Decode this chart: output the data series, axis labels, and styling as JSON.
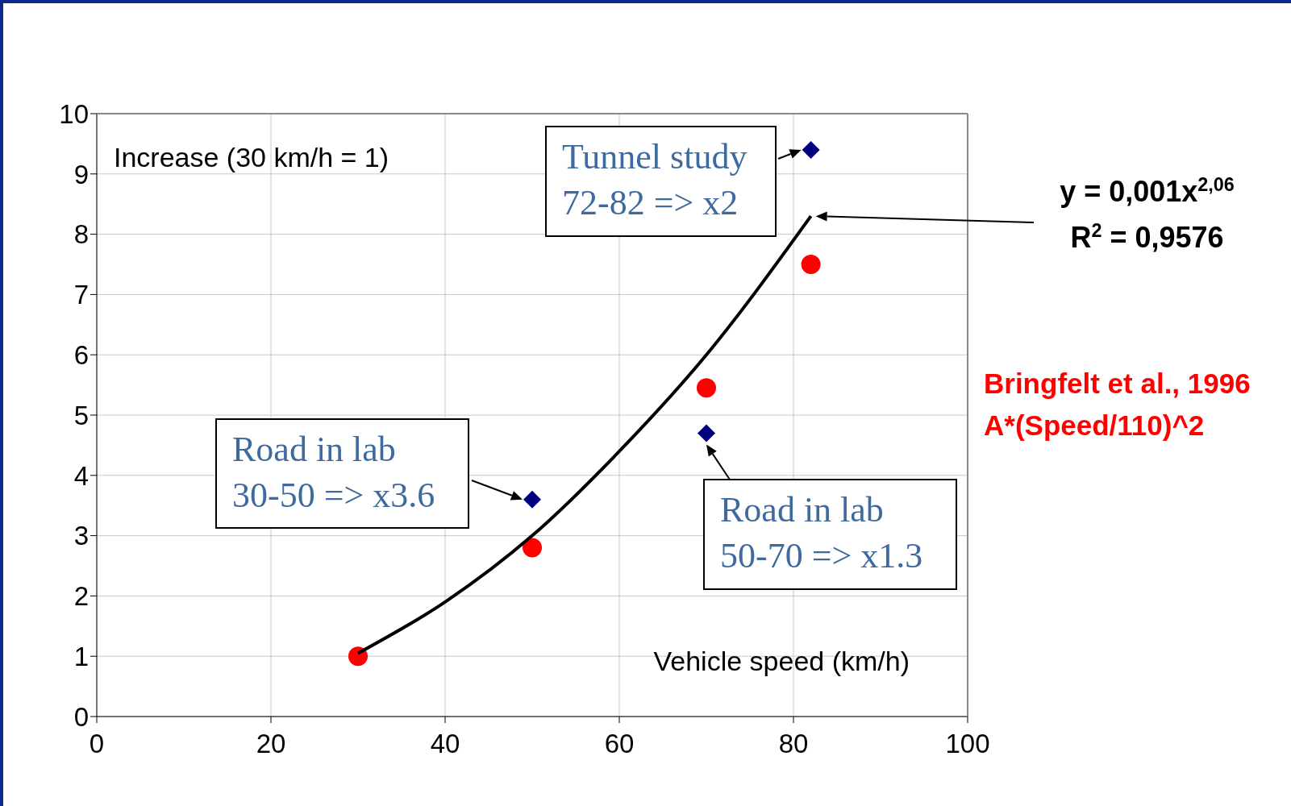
{
  "chart_data": {
    "type": "scatter",
    "xlabel": "Vehicle speed (km/h)",
    "ylabel": "Increase (30 km/h = 1)",
    "xlim": [
      0,
      100
    ],
    "xticks": [
      0,
      20,
      40,
      60,
      80,
      100
    ],
    "ylim": [
      0,
      10
    ],
    "yticks": [
      0,
      1,
      2,
      3,
      4,
      5,
      6,
      7,
      8,
      9,
      10
    ],
    "grid": true,
    "series": [
      {
        "name": "Bringfelt et al., 1996\nA*(Speed/110)^2",
        "color": "#ff0000",
        "marker": "circle",
        "x": [
          30,
          50,
          70,
          82
        ],
        "values": [
          1,
          2.8,
          5.45,
          7.5
        ]
      },
      {
        "color": "#000080",
        "marker": "diamond",
        "x": [
          50,
          70,
          82
        ],
        "values": [
          3.6,
          4.7,
          9.4
        ]
      },
      {
        "type": "line",
        "color": "#000000",
        "marker": "none",
        "x": [
          30,
          40,
          50,
          60,
          70,
          82
        ],
        "values": [
          1.05,
          1.9,
          3.0,
          4.4,
          6.0,
          8.3
        ]
      }
    ],
    "annotations": [
      "Tunnel study\n72-82 => x2",
      "Road in lab\n30-50 => x3.6",
      "Road in lab\n50-70 => x1.3",
      "y = 0,001x$^{2,06}$\nR$^{2}$ = 0,9576"
    ]
  }
}
